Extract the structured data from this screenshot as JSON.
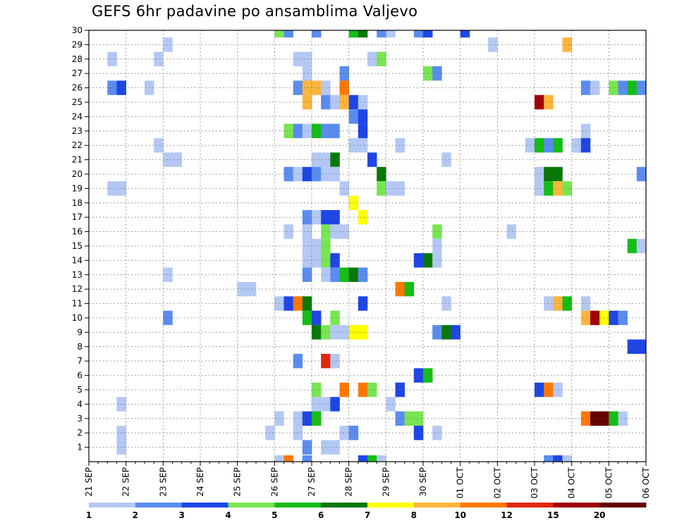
{
  "chart_data": {
    "type": "heatmap",
    "title": "GEFS 6hr padavine po ansamblima Valjevo",
    "x_tick_labels": [
      "21 SEP",
      "22 SEP",
      "23 SEP",
      "24 SEP",
      "25 SEP",
      "26 SEP",
      "27 SEP",
      "28 SEP",
      "29 SEP",
      "30 SEP",
      "01 OCT",
      "02 OCT",
      "03 OCT",
      "04 OCT",
      "05 OCT",
      "06 OCT"
    ],
    "y_tick_labels": [
      "1",
      "2",
      "3",
      "4",
      "5",
      "6",
      "7",
      "8",
      "9",
      "10",
      "11",
      "12",
      "13",
      "14",
      "15",
      "16",
      "17",
      "18",
      "19",
      "20",
      "21",
      "22",
      "23",
      "24",
      "25",
      "26",
      "27",
      "28",
      "29",
      "30"
    ],
    "grid": true,
    "legend_placement": "bottom",
    "colorbar": {
      "labels": [
        "1",
        "2",
        "3",
        "4",
        "5",
        "6",
        "7",
        "8",
        "10",
        "12",
        "15",
        "20"
      ],
      "colors": [
        "#b4c8f5",
        "#5a8cf0",
        "#1e46e6",
        "#78e650",
        "#14be14",
        "#087808",
        "#ffff00",
        "#ffb43c",
        "#ff7800",
        "#e1280a",
        "#a00000",
        "#640000"
      ]
    },
    "cells": [
      {
        "x": "21 SEP 18z",
        "member": 2,
        "bin": 1
      },
      {
        "x": "21 SEP 18z",
        "member": 1,
        "bin": 1
      },
      {
        "x": "21 SEP 18z",
        "member": 4,
        "bin": 1
      },
      {
        "x": "21 SEP 12z",
        "member": 19,
        "bin": 1
      },
      {
        "x": "21 SEP 18z",
        "member": 19,
        "bin": 1
      },
      {
        "x": "21 SEP 12z",
        "member": 26,
        "bin": 2
      },
      {
        "x": "21 SEP 18z",
        "member": 26,
        "bin": 3
      },
      {
        "x": "21 SEP 12z",
        "member": 28,
        "bin": 1
      },
      {
        "x": "22 SEP 12z",
        "member": 26,
        "bin": 1
      },
      {
        "x": "22 SEP 18z",
        "member": 28,
        "bin": 1
      },
      {
        "x": "22 SEP 18z",
        "member": 22,
        "bin": 1
      },
      {
        "x": "23 SEP 00z",
        "member": 29,
        "bin": 1
      },
      {
        "x": "23 SEP 00z",
        "member": 21,
        "bin": 1
      },
      {
        "x": "23 SEP 06z",
        "member": 21,
        "bin": 1
      },
      {
        "x": "23 SEP 00z",
        "member": 13,
        "bin": 1
      },
      {
        "x": "23 SEP 00z",
        "member": 10,
        "bin": 2
      },
      {
        "x": "25 SEP 00z",
        "member": 12,
        "bin": 1
      },
      {
        "x": "25 SEP 06z",
        "member": 12,
        "bin": 1
      },
      {
        "x": "25 SEP 18z",
        "member": 2,
        "bin": 1
      },
      {
        "x": "26 SEP 00z",
        "member": 3,
        "bin": 1
      },
      {
        "x": "26 SEP 00z",
        "member": 11,
        "bin": 1
      },
      {
        "x": "26 SEP 00z",
        "member": 0,
        "bin": 1
      },
      {
        "x": "26 SEP 00z",
        "member": 30,
        "bin": 4
      },
      {
        "x": "26 SEP 06z",
        "member": 30,
        "bin": 2
      },
      {
        "x": "26 SEP 06z",
        "member": 20,
        "bin": 2
      },
      {
        "x": "26 SEP 06z",
        "member": 23,
        "bin": 4
      },
      {
        "x": "26 SEP 06z",
        "member": 16,
        "bin": 1
      },
      {
        "x": "26 SEP 06z",
        "member": 11,
        "bin": 3
      },
      {
        "x": "26 SEP 06z",
        "member": 0,
        "bin": 9
      },
      {
        "x": "26 SEP 12z",
        "member": 28,
        "bin": 1
      },
      {
        "x": "26 SEP 12z",
        "member": 26,
        "bin": 2
      },
      {
        "x": "26 SEP 12z",
        "member": 23,
        "bin": 2
      },
      {
        "x": "26 SEP 12z",
        "member": 20,
        "bin": 1
      },
      {
        "x": "26 SEP 12z",
        "member": 11,
        "bin": 9
      },
      {
        "x": "26 SEP 12z",
        "member": 7,
        "bin": 2
      },
      {
        "x": "26 SEP 12z",
        "member": 3,
        "bin": 1
      },
      {
        "x": "26 SEP 12z",
        "member": 2,
        "bin": 1
      },
      {
        "x": "26 SEP 18z",
        "member": 28,
        "bin": 1
      },
      {
        "x": "26 SEP 18z",
        "member": 27,
        "bin": 1
      },
      {
        "x": "26 SEP 18z",
        "member": 26,
        "bin": 8
      },
      {
        "x": "26 SEP 18z",
        "member": 25,
        "bin": 8
      },
      {
        "x": "26 SEP 18z",
        "member": 23,
        "bin": 1
      },
      {
        "x": "26 SEP 18z",
        "member": 20,
        "bin": 3
      },
      {
        "x": "26 SEP 18z",
        "member": 17,
        "bin": 2
      },
      {
        "x": "26 SEP 18z",
        "member": 16,
        "bin": 1
      },
      {
        "x": "26 SEP 18z",
        "member": 15,
        "bin": 1
      },
      {
        "x": "26 SEP 18z",
        "member": 14,
        "bin": 1
      },
      {
        "x": "26 SEP 18z",
        "member": 13,
        "bin": 2
      },
      {
        "x": "26 SEP 18z",
        "member": 11,
        "bin": 6
      },
      {
        "x": "26 SEP 18z",
        "member": 10,
        "bin": 5
      },
      {
        "x": "26 SEP 18z",
        "member": 3,
        "bin": 3
      },
      {
        "x": "26 SEP 18z",
        "member": 1,
        "bin": 2
      },
      {
        "x": "26 SEP 18z",
        "member": 0,
        "bin": 2
      },
      {
        "x": "27 SEP 00z",
        "member": 30,
        "bin": 2
      },
      {
        "x": "27 SEP 00z",
        "member": 26,
        "bin": 8
      },
      {
        "x": "27 SEP 00z",
        "member": 23,
        "bin": 5
      },
      {
        "x": "27 SEP 00z",
        "member": 21,
        "bin": 1
      },
      {
        "x": "27 SEP 00z",
        "member": 20,
        "bin": 2
      },
      {
        "x": "27 SEP 00z",
        "member": 17,
        "bin": 1
      },
      {
        "x": "27 SEP 00z",
        "member": 15,
        "bin": 1
      },
      {
        "x": "27 SEP 00z",
        "member": 14,
        "bin": 1
      },
      {
        "x": "27 SEP 00z",
        "member": 10,
        "bin": 3
      },
      {
        "x": "27 SEP 00z",
        "member": 9,
        "bin": 6
      },
      {
        "x": "27 SEP 00z",
        "member": 5,
        "bin": 4
      },
      {
        "x": "27 SEP 00z",
        "member": 4,
        "bin": 1
      },
      {
        "x": "27 SEP 00z",
        "member": 3,
        "bin": 5
      },
      {
        "x": "27 SEP 06z",
        "member": 26,
        "bin": 1
      },
      {
        "x": "27 SEP 06z",
        "member": 25,
        "bin": 2
      },
      {
        "x": "27 SEP 06z",
        "member": 23,
        "bin": 2
      },
      {
        "x": "27 SEP 06z",
        "member": 21,
        "bin": 1
      },
      {
        "x": "27 SEP 06z",
        "member": 20,
        "bin": 1
      },
      {
        "x": "27 SEP 06z",
        "member": 17,
        "bin": 3
      },
      {
        "x": "27 SEP 06z",
        "member": 16,
        "bin": 4
      },
      {
        "x": "27 SEP 06z",
        "member": 15,
        "bin": 4
      },
      {
        "x": "27 SEP 06z",
        "member": 14,
        "bin": 4
      },
      {
        "x": "27 SEP 06z",
        "member": 13,
        "bin": 1
      },
      {
        "x": "27 SEP 06z",
        "member": 9,
        "bin": 4
      },
      {
        "x": "27 SEP 06z",
        "member": 7,
        "bin": 10
      },
      {
        "x": "27 SEP 06z",
        "member": 4,
        "bin": 1
      },
      {
        "x": "27 SEP 06z",
        "member": 1,
        "bin": 1
      },
      {
        "x": "27 SEP 12z",
        "member": 25,
        "bin": 1
      },
      {
        "x": "27 SEP 12z",
        "member": 23,
        "bin": 2
      },
      {
        "x": "27 SEP 12z",
        "member": 21,
        "bin": 6
      },
      {
        "x": "27 SEP 12z",
        "member": 20,
        "bin": 1
      },
      {
        "x": "27 SEP 12z",
        "member": 17,
        "bin": 3
      },
      {
        "x": "27 SEP 12z",
        "member": 16,
        "bin": 1
      },
      {
        "x": "27 SEP 12z",
        "member": 14,
        "bin": 3
      },
      {
        "x": "27 SEP 12z",
        "member": 13,
        "bin": 2
      },
      {
        "x": "27 SEP 12z",
        "member": 10,
        "bin": 4
      },
      {
        "x": "27 SEP 12z",
        "member": 9,
        "bin": 1
      },
      {
        "x": "27 SEP 12z",
        "member": 7,
        "bin": 1
      },
      {
        "x": "27 SEP 12z",
        "member": 4,
        "bin": 3
      },
      {
        "x": "27 SEP 12z",
        "member": 1,
        "bin": 1
      },
      {
        "x": "27 SEP 18z",
        "member": 27,
        "bin": 2
      },
      {
        "x": "27 SEP 18z",
        "member": 26,
        "bin": 9
      },
      {
        "x": "27 SEP 18z",
        "member": 25,
        "bin": 8
      },
      {
        "x": "27 SEP 18z",
        "member": 19,
        "bin": 1
      },
      {
        "x": "27 SEP 18z",
        "member": 16,
        "bin": 1
      },
      {
        "x": "27 SEP 18z",
        "member": 13,
        "bin": 5
      },
      {
        "x": "27 SEP 18z",
        "member": 9,
        "bin": 1
      },
      {
        "x": "27 SEP 18z",
        "member": 5,
        "bin": 9
      },
      {
        "x": "27 SEP 18z",
        "member": 2,
        "bin": 1
      },
      {
        "x": "28 SEP 00z",
        "member": 25,
        "bin": 3
      },
      {
        "x": "28 SEP 00z",
        "member": 24,
        "bin": 2
      },
      {
        "x": "28 SEP 00z",
        "member": 22,
        "bin": 1
      },
      {
        "x": "28 SEP 00z",
        "member": 18,
        "bin": 7
      },
      {
        "x": "28 SEP 00z",
        "member": 13,
        "bin": 6
      },
      {
        "x": "28 SEP 00z",
        "member": 9,
        "bin": 7
      },
      {
        "x": "28 SEP 00z",
        "member": 2,
        "bin": 2
      },
      {
        "x": "28 SEP 00z",
        "member": 30,
        "bin": 5
      },
      {
        "x": "28 SEP 06z",
        "member": 30,
        "bin": 6
      },
      {
        "x": "28 SEP 06z",
        "member": 25,
        "bin": 1
      },
      {
        "x": "28 SEP 06z",
        "member": 24,
        "bin": 3
      },
      {
        "x": "28 SEP 06z",
        "member": 23,
        "bin": 3
      },
      {
        "x": "28 SEP 06z",
        "member": 22,
        "bin": 1
      },
      {
        "x": "28 SEP 06z",
        "member": 17,
        "bin": 7
      },
      {
        "x": "28 SEP 06z",
        "member": 13,
        "bin": 2
      },
      {
        "x": "28 SEP 06z",
        "member": 11,
        "bin": 3
      },
      {
        "x": "28 SEP 06z",
        "member": 9,
        "bin": 7
      },
      {
        "x": "28 SEP 06z",
        "member": 5,
        "bin": 9
      },
      {
        "x": "28 SEP 06z",
        "member": 0,
        "bin": 3
      },
      {
        "x": "28 SEP 12z",
        "member": 28,
        "bin": 1
      },
      {
        "x": "28 SEP 12z",
        "member": 21,
        "bin": 3
      },
      {
        "x": "28 SEP 12z",
        "member": 5,
        "bin": 4
      },
      {
        "x": "28 SEP 12z",
        "member": 0,
        "bin": 5
      },
      {
        "x": "28 SEP 18z",
        "member": 30,
        "bin": 2
      },
      {
        "x": "28 SEP 18z",
        "member": 28,
        "bin": 4
      },
      {
        "x": "28 SEP 18z",
        "member": 20,
        "bin": 6
      },
      {
        "x": "28 SEP 18z",
        "member": 19,
        "bin": 4
      },
      {
        "x": "28 SEP 18z",
        "member": 0,
        "bin": 1
      },
      {
        "x": "29 SEP 00z",
        "member": 30,
        "bin": 1
      },
      {
        "x": "29 SEP 00z",
        "member": 19,
        "bin": 1
      },
      {
        "x": "29 SEP 00z",
        "member": 4,
        "bin": 1
      },
      {
        "x": "29 SEP 06z",
        "member": 22,
        "bin": 1
      },
      {
        "x": "29 SEP 06z",
        "member": 19,
        "bin": 1
      },
      {
        "x": "29 SEP 06z",
        "member": 12,
        "bin": 9
      },
      {
        "x": "29 SEP 06z",
        "member": 5,
        "bin": 3
      },
      {
        "x": "29 SEP 06z",
        "member": 3,
        "bin": 2
      },
      {
        "x": "29 SEP 12z",
        "member": 12,
        "bin": 5
      },
      {
        "x": "29 SEP 12z",
        "member": 3,
        "bin": 4
      },
      {
        "x": "29 SEP 18z",
        "member": 30,
        "bin": 2
      },
      {
        "x": "29 SEP 18z",
        "member": 14,
        "bin": 3
      },
      {
        "x": "29 SEP 18z",
        "member": 6,
        "bin": 3
      },
      {
        "x": "29 SEP 18z",
        "member": 3,
        "bin": 4
      },
      {
        "x": "29 SEP 18z",
        "member": 2,
        "bin": 3
      },
      {
        "x": "30 SEP 00z",
        "member": 30,
        "bin": 3
      },
      {
        "x": "30 SEP 00z",
        "member": 27,
        "bin": 4
      },
      {
        "x": "30 SEP 00z",
        "member": 14,
        "bin": 6
      },
      {
        "x": "30 SEP 00z",
        "member": 6,
        "bin": 5
      },
      {
        "x": "30 SEP 06z",
        "member": 27,
        "bin": 2
      },
      {
        "x": "30 SEP 06z",
        "member": 16,
        "bin": 4
      },
      {
        "x": "30 SEP 06z",
        "member": 15,
        "bin": 1
      },
      {
        "x": "30 SEP 06z",
        "member": 14,
        "bin": 1
      },
      {
        "x": "30 SEP 06z",
        "member": 9,
        "bin": 2
      },
      {
        "x": "30 SEP 06z",
        "member": 2,
        "bin": 1
      },
      {
        "x": "30 SEP 12z",
        "member": 21,
        "bin": 1
      },
      {
        "x": "30 SEP 12z",
        "member": 11,
        "bin": 1
      },
      {
        "x": "30 SEP 12z",
        "member": 9,
        "bin": 6
      },
      {
        "x": "30 SEP 18z",
        "member": 9,
        "bin": 3
      },
      {
        "x": "01 OCT 00z",
        "member": 30,
        "bin": 3
      },
      {
        "x": "01 OCT 18z",
        "member": 29,
        "bin": 1
      },
      {
        "x": "02 OCT 06z",
        "member": 16,
        "bin": 1
      },
      {
        "x": "02 OCT 18z",
        "member": 22,
        "bin": 1
      },
      {
        "x": "03 OCT 00z",
        "member": 25,
        "bin": 11
      },
      {
        "x": "03 OCT 00z",
        "member": 22,
        "bin": 5
      },
      {
        "x": "03 OCT 00z",
        "member": 20,
        "bin": 1
      },
      {
        "x": "03 OCT 00z",
        "member": 19,
        "bin": 1
      },
      {
        "x": "03 OCT 00z",
        "member": 5,
        "bin": 3
      },
      {
        "x": "03 OCT 06z",
        "member": 25,
        "bin": 8
      },
      {
        "x": "03 OCT 06z",
        "member": 22,
        "bin": 2
      },
      {
        "x": "03 OCT 06z",
        "member": 20,
        "bin": 6
      },
      {
        "x": "03 OCT 06z",
        "member": 19,
        "bin": 5
      },
      {
        "x": "03 OCT 06z",
        "member": 11,
        "bin": 1
      },
      {
        "x": "03 OCT 06z",
        "member": 5,
        "bin": 9
      },
      {
        "x": "03 OCT 06z",
        "member": 0,
        "bin": 2
      },
      {
        "x": "03 OCT 12z",
        "member": 22,
        "bin": 5
      },
      {
        "x": "03 OCT 12z",
        "member": 20,
        "bin": 6
      },
      {
        "x": "03 OCT 12z",
        "member": 19,
        "bin": 8
      },
      {
        "x": "03 OCT 12z",
        "member": 11,
        "bin": 8
      },
      {
        "x": "03 OCT 12z",
        "member": 5,
        "bin": 1
      },
      {
        "x": "03 OCT 12z",
        "member": 0,
        "bin": 3
      },
      {
        "x": "03 OCT 18z",
        "member": 29,
        "bin": 8
      },
      {
        "x": "03 OCT 18z",
        "member": 19,
        "bin": 4
      },
      {
        "x": "03 OCT 18z",
        "member": 11,
        "bin": 5
      },
      {
        "x": "03 OCT 18z",
        "member": 0,
        "bin": 1
      },
      {
        "x": "04 OCT 00z",
        "member": 22,
        "bin": 1
      },
      {
        "x": "04 OCT 06z",
        "member": 26,
        "bin": 2
      },
      {
        "x": "04 OCT 06z",
        "member": 23,
        "bin": 1
      },
      {
        "x": "04 OCT 06z",
        "member": 22,
        "bin": 3
      },
      {
        "x": "04 OCT 06z",
        "member": 11,
        "bin": 1
      },
      {
        "x": "04 OCT 06z",
        "member": 10,
        "bin": 8
      },
      {
        "x": "04 OCT 06z",
        "member": 3,
        "bin": 9
      },
      {
        "x": "04 OCT 12z",
        "member": 26,
        "bin": 1
      },
      {
        "x": "04 OCT 12z",
        "member": 10,
        "bin": 11
      },
      {
        "x": "04 OCT 12z",
        "member": 3,
        "bin": 12
      },
      {
        "x": "04 OCT 18z",
        "member": 10,
        "bin": 7
      },
      {
        "x": "04 OCT 18z",
        "member": 3,
        "bin": 12
      },
      {
        "x": "05 OCT 00z",
        "member": 26,
        "bin": 4
      },
      {
        "x": "05 OCT 00z",
        "member": 10,
        "bin": 3
      },
      {
        "x": "05 OCT 00z",
        "member": 3,
        "bin": 5
      },
      {
        "x": "05 OCT 06z",
        "member": 26,
        "bin": 2
      },
      {
        "x": "05 OCT 06z",
        "member": 10,
        "bin": 2
      },
      {
        "x": "05 OCT 06z",
        "member": 3,
        "bin": 1
      },
      {
        "x": "05 OCT 12z",
        "member": 26,
        "bin": 5
      },
      {
        "x": "05 OCT 12z",
        "member": 15,
        "bin": 5
      },
      {
        "x": "05 OCT 12z",
        "member": 8,
        "bin": 3
      },
      {
        "x": "05 OCT 18z",
        "member": 26,
        "bin": 2
      },
      {
        "x": "05 OCT 18z",
        "member": 20,
        "bin": 2
      },
      {
        "x": "05 OCT 18z",
        "member": 15,
        "bin": 1
      },
      {
        "x": "05 OCT 18z",
        "member": 8,
        "bin": 3
      }
    ]
  }
}
